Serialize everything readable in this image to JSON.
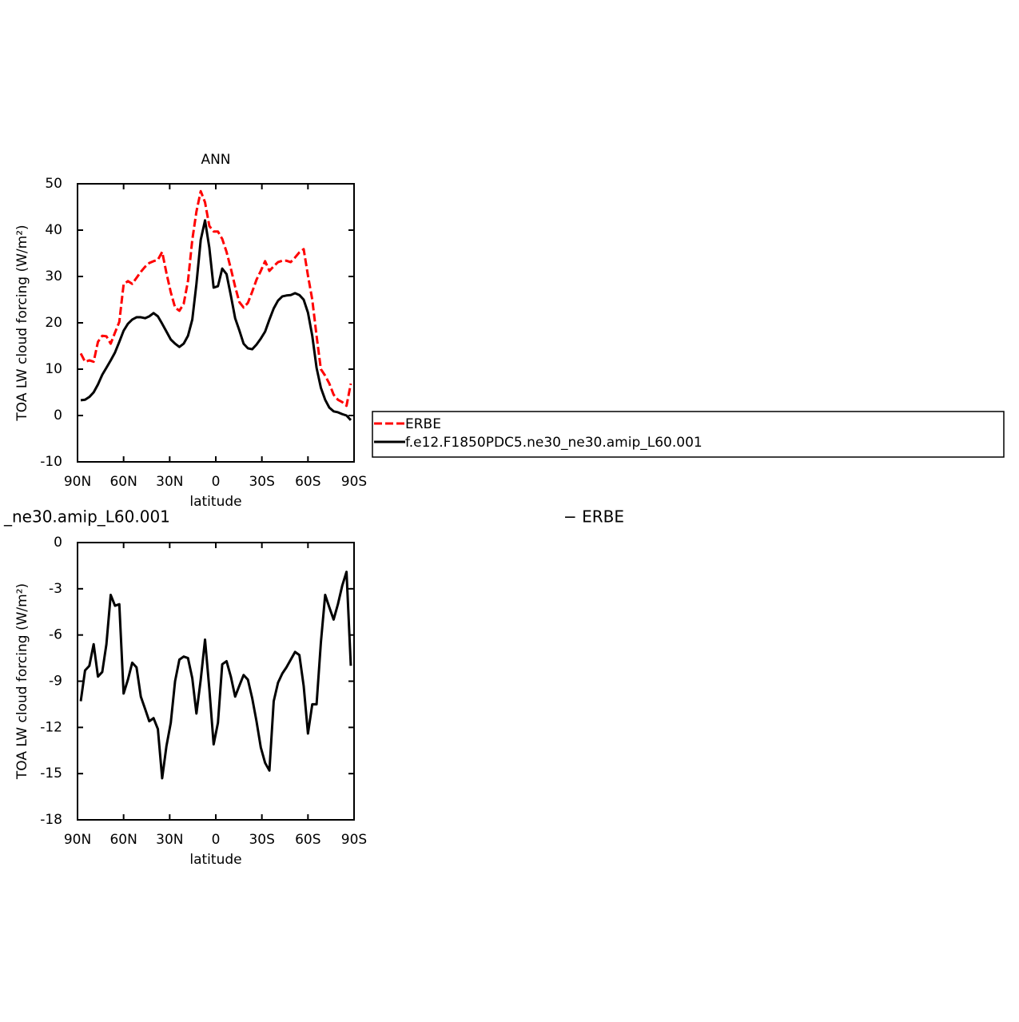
{
  "chart_data": [
    {
      "type": "line",
      "title": "ANN",
      "xlabel": "latitude",
      "ylabel": "TOA LW cloud forcing (W/m²)",
      "x": [
        87.9,
        85.1,
        82.3,
        79.5,
        76.7,
        73.9,
        71.2,
        68.4,
        65.6,
        62.8,
        60.0,
        57.2,
        54.4,
        51.6,
        48.8,
        46.0,
        43.3,
        40.5,
        37.7,
        34.9,
        32.1,
        29.3,
        26.5,
        23.7,
        20.9,
        18.1,
        15.3,
        12.6,
        9.8,
        7.0,
        4.2,
        1.4,
        -1.4,
        -4.2,
        -7.0,
        -9.8,
        -12.6,
        -15.3,
        -18.1,
        -20.9,
        -23.7,
        -26.5,
        -29.3,
        -32.1,
        -34.9,
        -37.7,
        -40.5,
        -43.3,
        -46.0,
        -48.8,
        -51.6,
        -54.4,
        -57.2,
        -60.0,
        -62.8,
        -65.6,
        -68.4,
        -71.2,
        -73.9,
        -76.7,
        -79.5,
        -82.3,
        -85.1,
        -87.9
      ],
      "series": [
        {
          "name": "ERBE",
          "color": "#ff0000",
          "dash": "dashed",
          "values": [
            13.4,
            11.6,
            11.9,
            11.6,
            15.9,
            17.2,
            17.1,
            15.5,
            17.9,
            20.2,
            28.3,
            29.0,
            28.4,
            29.7,
            31.0,
            32.1,
            32.9,
            33.3,
            33.6,
            35.3,
            30.7,
            26.6,
            23.3,
            22.6,
            24.1,
            29.0,
            37.9,
            44.0,
            48.4,
            46.0,
            40.9,
            39.7,
            39.7,
            38.1,
            35.3,
            31.7,
            27.8,
            24.5,
            23.3,
            24.3,
            26.7,
            29.3,
            31.2,
            33.3,
            31.2,
            32.2,
            33.1,
            33.4,
            33.4,
            33.1,
            34.1,
            35.2,
            35.9,
            30.2,
            25.0,
            17.2,
            10.0,
            8.6,
            6.9,
            4.5,
            3.4,
            2.9,
            2.1,
            6.9
          ]
        },
        {
          "name": "f.e12.F1850PDC5.ne30_ne30.amip_L60.001",
          "color": "#000000",
          "dash": "solid",
          "values": [
            3.3,
            3.4,
            4.0,
            5.0,
            6.7,
            8.8,
            10.3,
            11.9,
            13.6,
            15.9,
            18.3,
            19.8,
            20.7,
            21.2,
            21.2,
            21.0,
            21.4,
            22.1,
            21.4,
            19.8,
            18.1,
            16.4,
            15.5,
            14.8,
            15.5,
            17.2,
            20.7,
            28.4,
            37.9,
            42.1,
            36.2,
            27.6,
            27.9,
            31.7,
            30.5,
            25.9,
            21.0,
            18.4,
            15.5,
            14.5,
            14.3,
            15.3,
            16.6,
            18.1,
            20.7,
            23.1,
            24.8,
            25.7,
            25.9,
            26.0,
            26.4,
            26.0,
            25.0,
            22.2,
            17.2,
            10.3,
            6.0,
            3.4,
            1.7,
            0.9,
            0.7,
            0.3,
            0.0,
            -1.0
          ]
        }
      ],
      "xlim": [
        90,
        -90
      ],
      "xticks": [
        {
          "value": 90,
          "label": "90N"
        },
        {
          "value": 60,
          "label": "60N"
        },
        {
          "value": 30,
          "label": "30N"
        },
        0,
        {
          "value": -30,
          "label": "30S"
        },
        {
          "value": -60,
          "label": "60S"
        },
        {
          "value": -90,
          "label": "90S"
        }
      ],
      "ylim": [
        -10,
        50
      ],
      "yticks": [
        -10,
        0,
        10,
        20,
        30,
        40,
        50
      ],
      "legend": "right"
    },
    {
      "type": "line",
      "title_left": "_ne30.amip_L60.001",
      "title_right": "− ERBE",
      "xlabel": "latitude",
      "ylabel": "TOA LW cloud forcing (W/m²)",
      "x": [
        87.9,
        85.1,
        82.3,
        79.5,
        76.7,
        73.9,
        71.2,
        68.4,
        65.6,
        62.8,
        60.0,
        57.2,
        54.4,
        51.6,
        48.8,
        46.0,
        43.3,
        40.5,
        37.7,
        34.9,
        32.1,
        29.3,
        26.5,
        23.7,
        20.9,
        18.1,
        15.3,
        12.6,
        9.8,
        7.0,
        4.2,
        1.4,
        -1.4,
        -4.2,
        -7.0,
        -9.8,
        -12.6,
        -15.3,
        -18.1,
        -20.9,
        -23.7,
        -26.5,
        -29.3,
        -32.1,
        -34.9,
        -37.7,
        -40.5,
        -43.3,
        -46.0,
        -48.8,
        -51.6,
        -54.4,
        -57.2,
        -60.0,
        -62.8,
        -65.6,
        -68.4,
        -71.2,
        -73.9,
        -76.7,
        -79.5,
        -82.3,
        -85.1,
        -87.9
      ],
      "series": [
        {
          "color": "#000000",
          "dash": "solid",
          "values": [
            -10.3,
            -8.3,
            -8.0,
            -6.6,
            -8.7,
            -8.4,
            -6.6,
            -3.4,
            -4.1,
            -4.0,
            -9.8,
            -8.9,
            -7.8,
            -8.1,
            -10.0,
            -10.8,
            -11.6,
            -11.4,
            -12.1,
            -15.3,
            -13.2,
            -11.7,
            -9.0,
            -7.6,
            -7.4,
            -7.5,
            -8.8,
            -11.1,
            -8.9,
            -6.3,
            -9.5,
            -13.1,
            -11.7,
            -7.9,
            -7.7,
            -8.7,
            -10.0,
            -9.3,
            -8.6,
            -8.9,
            -10.1,
            -11.6,
            -13.3,
            -14.3,
            -14.8,
            -10.3,
            -9.1,
            -8.5,
            -8.1,
            -7.6,
            -7.1,
            -7.3,
            -9.3,
            -12.4,
            -10.5,
            -10.5,
            -6.5,
            -3.4,
            -4.2,
            -5.0,
            -4.0,
            -2.8,
            -1.9,
            -8.0
          ]
        }
      ],
      "xlim": [
        90,
        -90
      ],
      "xticks": [
        {
          "value": 90,
          "label": "90N"
        },
        {
          "value": 60,
          "label": "60N"
        },
        {
          "value": 30,
          "label": "30N"
        },
        0,
        {
          "value": -30,
          "label": "30S"
        },
        {
          "value": -60,
          "label": "60S"
        },
        {
          "value": -90,
          "label": "90S"
        }
      ],
      "ylim": [
        -18,
        0
      ],
      "yticks": [
        -18,
        -15,
        -12,
        -9,
        -6,
        -3,
        0
      ]
    }
  ]
}
